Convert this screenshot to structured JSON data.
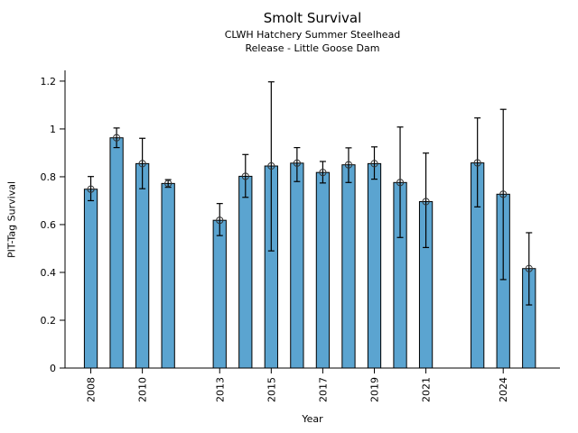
{
  "chart_data": {
    "type": "bar",
    "title": "Smolt Survival",
    "subtitle_line1": "CLWH Hatchery Summer Steelhead",
    "subtitle_line2": "Release - Little Goose Dam",
    "xlabel": "Year",
    "ylabel": "PIT-Tag Survival",
    "grid": false,
    "legend": null,
    "xlim": [
      2007.0,
      2026.2
    ],
    "ylim": [
      0,
      1.245
    ],
    "yticks": [
      0,
      0.2,
      0.4,
      0.6,
      0.8,
      1.0,
      1.2
    ],
    "ytick_labels": [
      "0",
      "0.2",
      "0.4",
      "0.6",
      "0.8",
      "1",
      "1.2"
    ],
    "xticks": [
      2008,
      2010,
      2013,
      2015,
      2017,
      2019,
      2021,
      2024
    ],
    "xtick_labels": [
      "2008",
      "2010",
      "2013",
      "2015",
      "2017",
      "2019",
      "2021",
      "2024"
    ],
    "bar_width_years": 0.5,
    "bar_color": "#5BA4D0",
    "bar_edge_color": "#000000",
    "error_color": "#000000",
    "marker_style": "open-circle",
    "marker_color": "#333333",
    "series": [
      {
        "year": 2008,
        "value": 0.748,
        "err_lo": 0.7,
        "err_hi": 0.801
      },
      {
        "year": 2009,
        "value": 0.963,
        "err_lo": 0.922,
        "err_hi": 1.004
      },
      {
        "year": 2010,
        "value": 0.855,
        "err_lo": 0.75,
        "err_hi": 0.961
      },
      {
        "year": 2011,
        "value": 0.772,
        "err_lo": 0.756,
        "err_hi": 0.788
      },
      {
        "year": 2013,
        "value": 0.618,
        "err_lo": 0.554,
        "err_hi": 0.688
      },
      {
        "year": 2014,
        "value": 0.802,
        "err_lo": 0.714,
        "err_hi": 0.893
      },
      {
        "year": 2015,
        "value": 0.845,
        "err_lo": 0.49,
        "err_hi": 1.197
      },
      {
        "year": 2016,
        "value": 0.857,
        "err_lo": 0.78,
        "err_hi": 0.922
      },
      {
        "year": 2017,
        "value": 0.818,
        "err_lo": 0.774,
        "err_hi": 0.864
      },
      {
        "year": 2018,
        "value": 0.85,
        "err_lo": 0.776,
        "err_hi": 0.921
      },
      {
        "year": 2019,
        "value": 0.855,
        "err_lo": 0.79,
        "err_hi": 0.925
      },
      {
        "year": 2020,
        "value": 0.776,
        "err_lo": 0.546,
        "err_hi": 1.008
      },
      {
        "year": 2021,
        "value": 0.696,
        "err_lo": 0.504,
        "err_hi": 0.899
      },
      {
        "year": 2023,
        "value": 0.858,
        "err_lo": 0.674,
        "err_hi": 1.046
      },
      {
        "year": 2024,
        "value": 0.727,
        "err_lo": 0.37,
        "err_hi": 1.082
      },
      {
        "year": 2025,
        "value": 0.416,
        "err_lo": 0.264,
        "err_hi": 0.566
      }
    ]
  }
}
